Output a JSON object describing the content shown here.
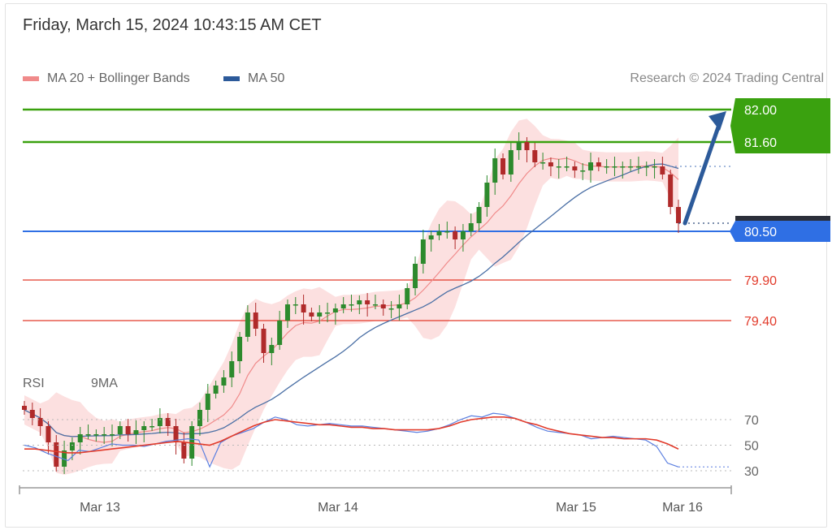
{
  "header": {
    "datetime": "Friday, March 15, 2024 10:43:15 AM CET",
    "credit": "Research © 2024 Trading Central"
  },
  "legend": {
    "ma20_label": "MA 20 + Bollinger Bands",
    "ma50_label": "MA 50",
    "ma20_color": "#f08a8a",
    "ma50_color": "#2c5a9a"
  },
  "rsi_legend": {
    "rsi_label": "RSI",
    "ma9_label": "9MA",
    "rsi_color": "#5b7fe0",
    "ma9_color": "#e23b2b"
  },
  "chart_data": [
    {
      "type": "candlestick",
      "levels": [
        {
          "value": 82.0,
          "label": "82.00",
          "color": "#3aa10f",
          "kind": "target"
        },
        {
          "value": 81.6,
          "label": "81.60",
          "color": "#3aa10f",
          "kind": "target"
        },
        {
          "value": 80.5,
          "label": "80.50",
          "color": "#2f6fe4",
          "kind": "pivot"
        },
        {
          "value": 79.9,
          "label": "79.90",
          "color": "#e23b2b",
          "kind": "support"
        },
        {
          "value": 79.4,
          "label": "79.40",
          "color": "#e23b2b",
          "kind": "support"
        }
      ],
      "x_tick_labels": [
        "Mar 13",
        "Mar 14",
        "Mar 15",
        "Mar 16"
      ],
      "close_series": [
        78.3,
        78.2,
        78.1,
        77.9,
        77.6,
        77.8,
        77.9,
        78.0,
        78.0,
        78.0,
        78.0,
        78.0,
        78.1,
        78.0,
        78.05,
        78.1,
        78.1,
        78.2,
        78.1,
        77.9,
        77.7,
        78.1,
        78.3,
        78.5,
        78.6,
        78.7,
        78.9,
        79.2,
        79.5,
        79.3,
        79.0,
        79.1,
        79.4,
        79.6,
        79.6,
        79.5,
        79.45,
        79.5,
        79.5,
        79.55,
        79.6,
        79.6,
        79.65,
        79.6,
        79.6,
        79.55,
        79.55,
        79.6,
        79.8,
        80.1,
        80.4,
        80.45,
        80.5,
        80.5,
        80.4,
        80.5,
        80.6,
        80.8,
        81.1,
        81.4,
        81.2,
        81.5,
        81.6,
        81.5,
        81.35,
        81.35,
        81.3,
        81.3,
        81.3,
        81.25,
        81.25,
        81.35,
        81.3,
        81.3,
        81.3,
        81.3,
        81.3,
        81.3,
        81.3,
        81.3,
        81.2,
        80.8,
        80.6
      ],
      "projection": {
        "from": 80.6,
        "to": 82.0
      }
    },
    {
      "type": "line",
      "title": "RSI",
      "levels": [
        70,
        50,
        30
      ],
      "series": [
        {
          "name": "RSI",
          "values": [
            50,
            48,
            44,
            41,
            38,
            46,
            45,
            48,
            51,
            50,
            50,
            49,
            51,
            53,
            54,
            55,
            54,
            33,
            52,
            57,
            60,
            63,
            68,
            72,
            70,
            66,
            65,
            66,
            67,
            66,
            65,
            65,
            64,
            63,
            62,
            61,
            60,
            61,
            63,
            66,
            70,
            73,
            72,
            75,
            74,
            71,
            68,
            64,
            61,
            60,
            59,
            58,
            55,
            56,
            57,
            56,
            55,
            54,
            49,
            36,
            33
          ]
        },
        {
          "name": "9MA",
          "values": [
            47,
            47,
            46,
            45,
            44,
            44,
            45,
            46,
            47,
            48,
            49,
            50,
            51,
            52,
            53,
            52,
            51,
            50,
            53,
            57,
            61,
            65,
            68,
            70,
            69,
            68,
            67,
            66,
            66,
            65,
            64,
            64,
            63,
            63,
            62,
            62,
            62,
            62,
            63,
            65,
            68,
            70,
            71,
            72,
            72,
            71,
            68,
            66,
            63,
            61,
            59,
            58,
            57,
            56,
            56,
            55,
            55,
            55,
            54,
            51,
            47
          ]
        }
      ]
    }
  ]
}
